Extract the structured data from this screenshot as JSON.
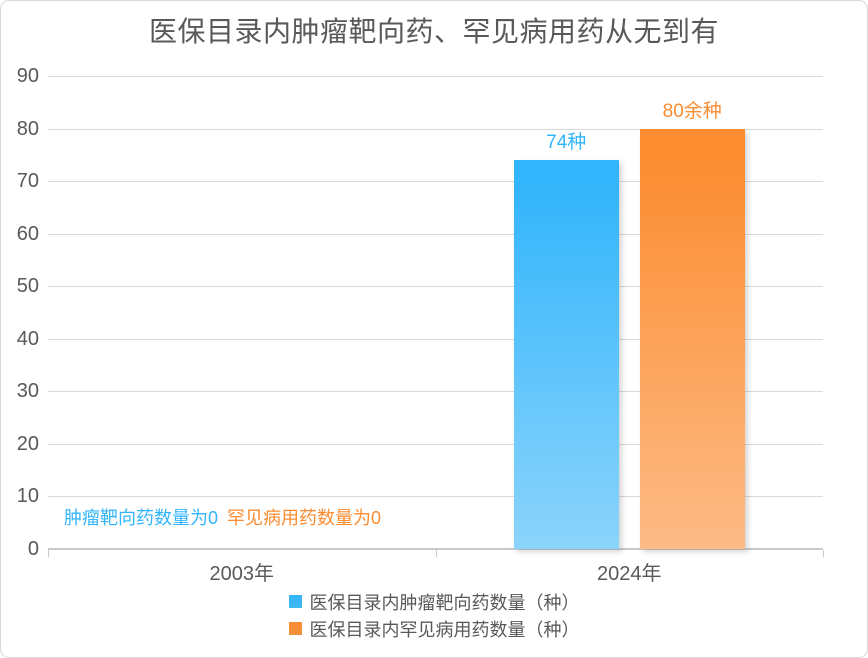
{
  "chart_data": {
    "type": "bar",
    "title": "医保目录内肿瘤靶向药、罕见病用药从无到有",
    "xlabel": "",
    "ylabel": "",
    "categories": [
      "2003年",
      "2024年"
    ],
    "series": [
      {
        "name": "医保目录内肿瘤靶向药数量（种）",
        "values": [
          0,
          74
        ],
        "value_labels": [
          "",
          "74种"
        ],
        "color_top": "#33B5FB",
        "color_bottom": "#8BD4FB",
        "legend_color": "#41B8F1"
      },
      {
        "name": "医保目录内罕见病用药数量（种）",
        "values": [
          0,
          80
        ],
        "value_labels": [
          "",
          "80余种"
        ],
        "color_top": "#FB8C30",
        "color_bottom": "#FDBB86",
        "legend_color": "#F0913D"
      }
    ],
    "annotations": [
      {
        "text": "肿瘤靶向药数量为0",
        "color": "#33B5FB"
      },
      {
        "text": "罕见病用药数量为0",
        "color": "#FB8C30"
      }
    ],
    "y_ticks": [
      0,
      10,
      20,
      30,
      40,
      50,
      60,
      70,
      80,
      90
    ],
    "ylim": [
      0,
      90
    ],
    "grid": true,
    "legend_position": "bottom",
    "text_color": "#595959",
    "gridline_color": "#D9D9D9"
  }
}
